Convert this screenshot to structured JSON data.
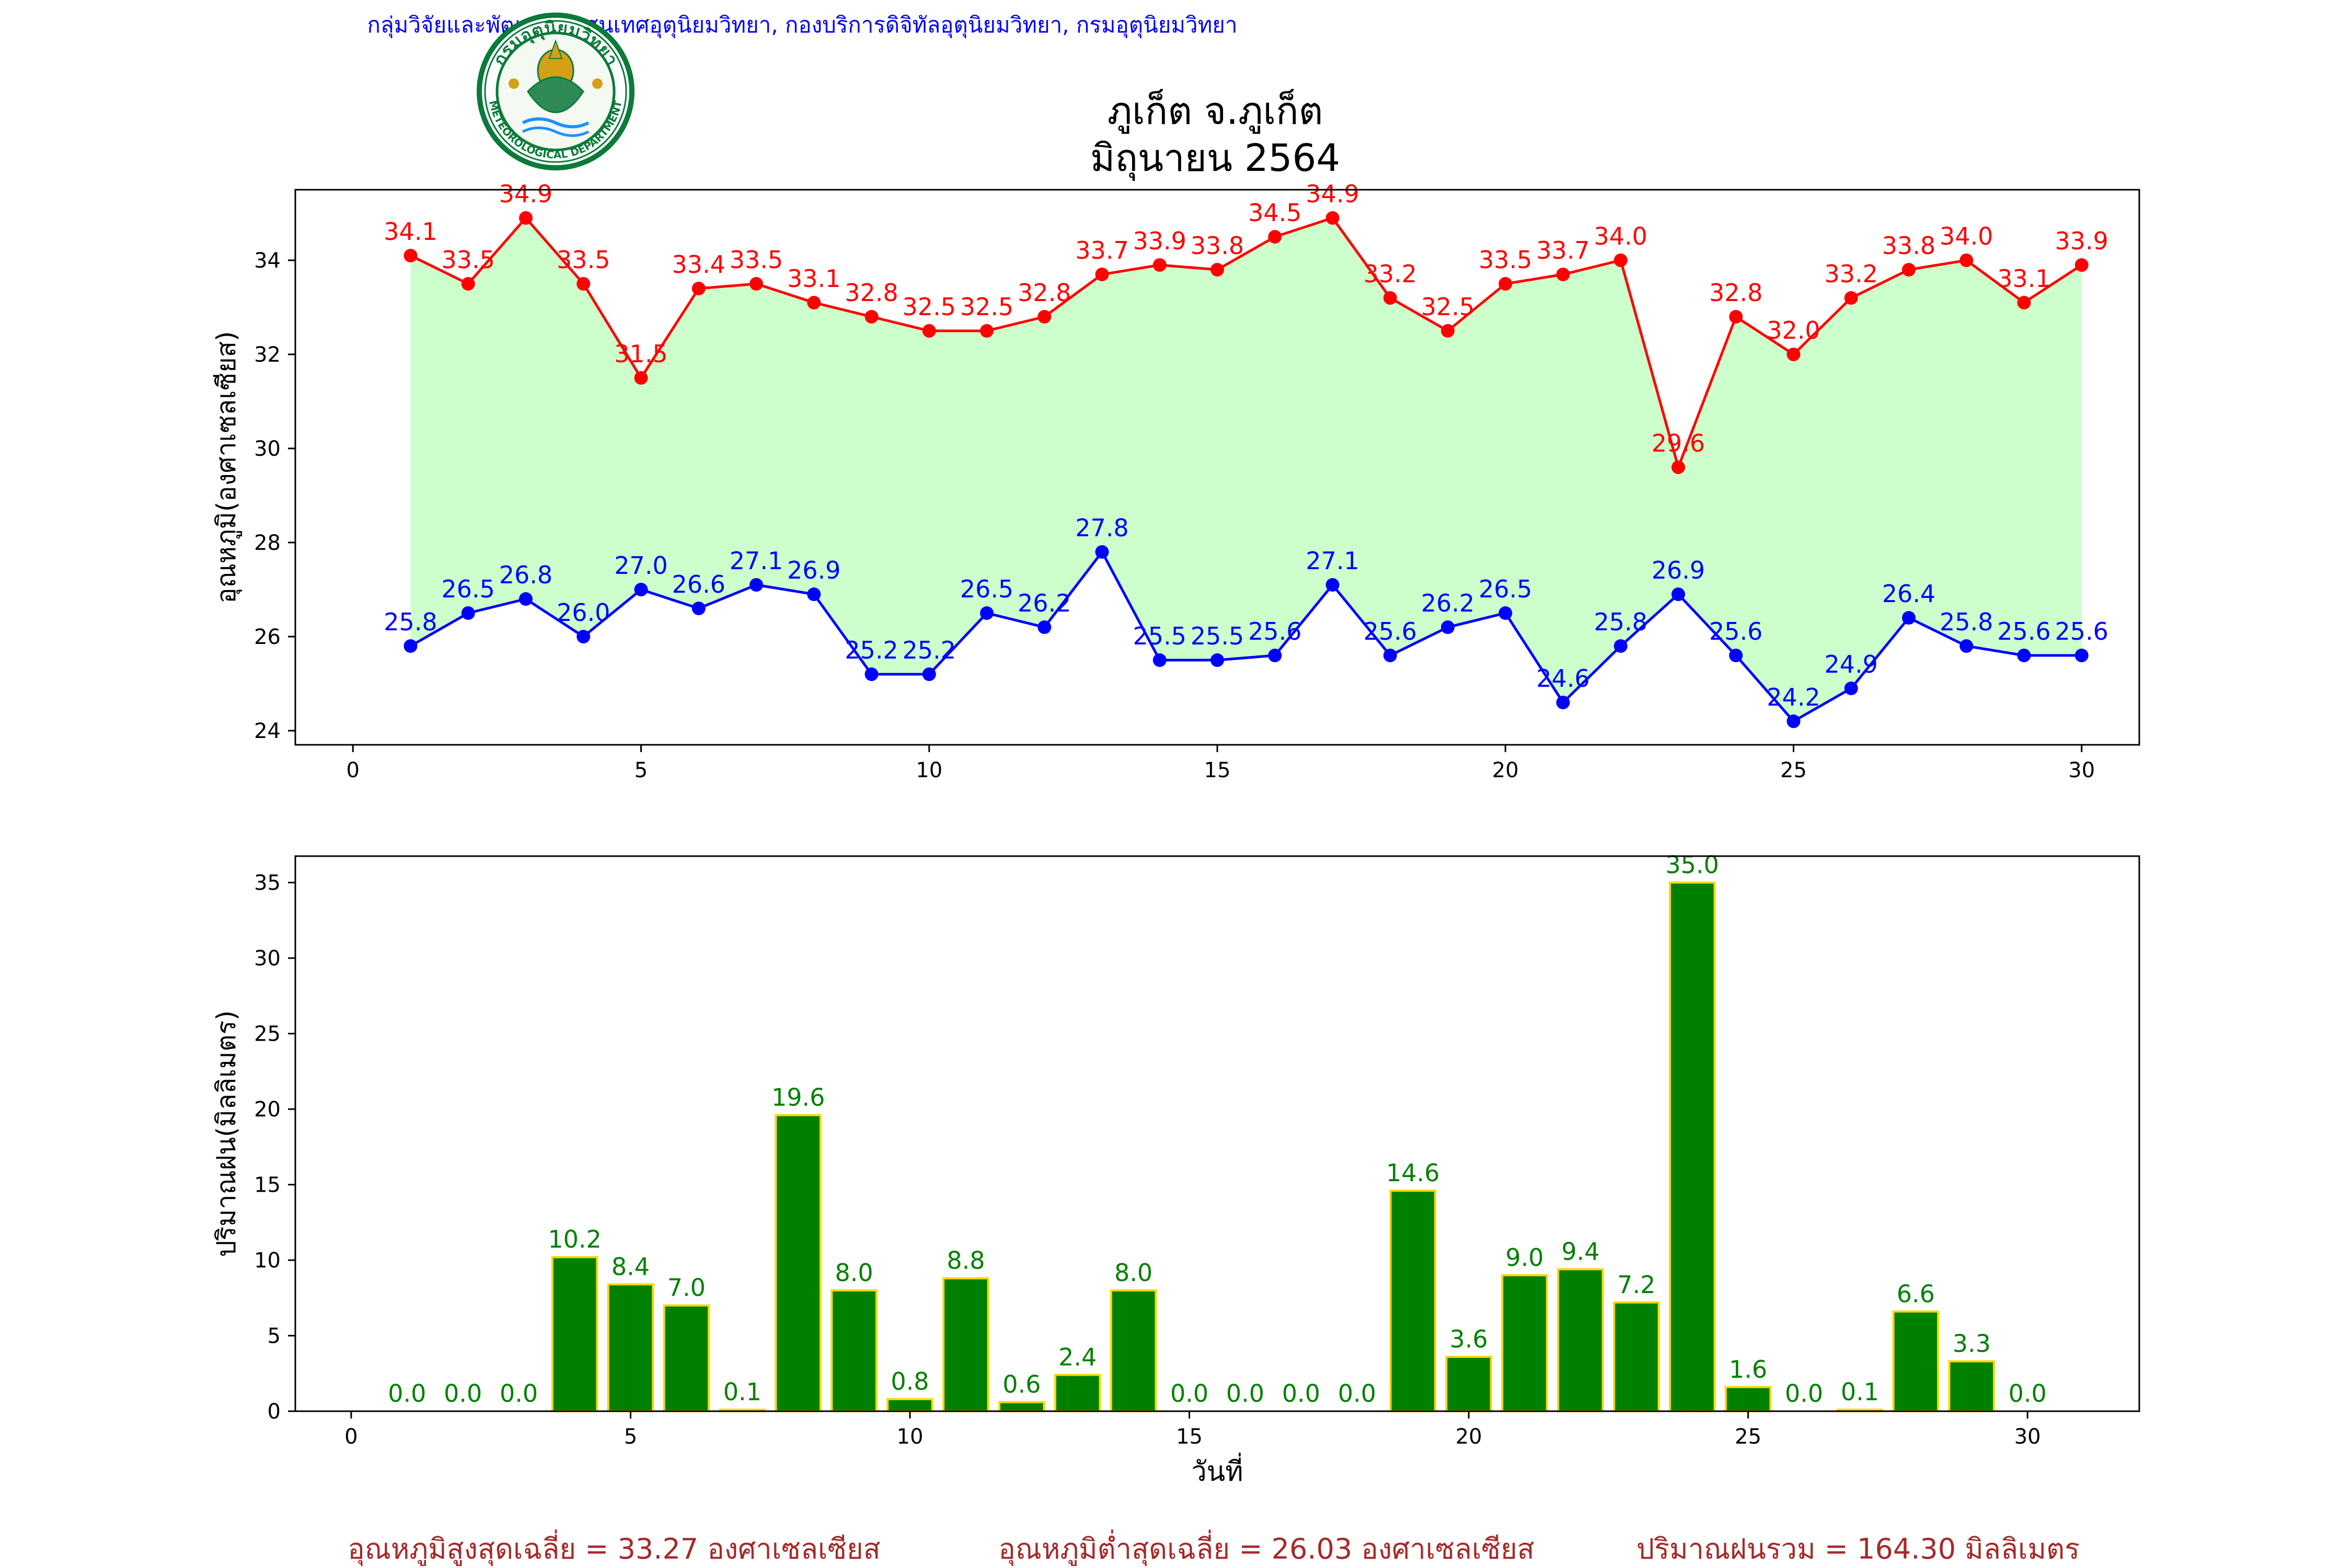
{
  "header": {
    "organization": "กลุ่มวิจัยและพัฒนาสารสนเทศอุตุนิยมวิทยา, กองบริการดิจิทัลอุตุนิยมวิทยา, กรมอุตุนิยมวิทยา",
    "logo_top_text": "กรมอุตุนิยมวิทยา",
    "logo_bottom_text": "METEOROLOGICAL DEPARTMENT",
    "title_line1": "ภูเก็ต จ.ภูเก็ต",
    "title_line2": "มิถุนายน 2564"
  },
  "colors": {
    "max_line": "#ff0000",
    "min_line": "#0000ff",
    "fill": "#ccffcc",
    "bar": "#008000",
    "bar_edge": "#ffd700",
    "bar_label": "#008000",
    "header_text": "#0000ff",
    "summary_text": "#a52a2a"
  },
  "chart_data": [
    {
      "type": "line",
      "ylabel": "อุณหภูมิ(องศาเซลเซียส)",
      "xlabel": "",
      "xlim": [
        -1,
        31
      ],
      "ylim": [
        23.7,
        35.5
      ],
      "xticks": [
        0,
        5,
        10,
        15,
        20,
        25,
        30
      ],
      "yticks": [
        24,
        26,
        28,
        30,
        32,
        34
      ],
      "fill_between_series": true,
      "x": [
        1,
        2,
        3,
        4,
        5,
        6,
        7,
        8,
        9,
        10,
        11,
        12,
        13,
        14,
        15,
        16,
        17,
        18,
        19,
        20,
        21,
        22,
        23,
        24,
        25,
        26,
        27,
        28,
        29,
        30
      ],
      "series": [
        {
          "key": "max",
          "values": [
            34.1,
            33.5,
            34.9,
            33.5,
            31.5,
            33.4,
            33.5,
            33.1,
            32.8,
            32.5,
            32.5,
            32.8,
            33.7,
            33.9,
            33.8,
            34.5,
            34.9,
            33.2,
            32.5,
            33.5,
            33.7,
            34.0,
            29.6,
            32.8,
            32.0,
            33.2,
            33.8,
            34.0,
            33.1,
            33.9
          ]
        },
        {
          "key": "min",
          "values": [
            25.8,
            26.5,
            26.8,
            26.0,
            27.0,
            26.6,
            27.1,
            26.9,
            25.2,
            25.2,
            26.5,
            26.2,
            27.8,
            25.5,
            25.5,
            25.6,
            27.1,
            25.6,
            26.2,
            26.5,
            24.6,
            25.8,
            26.9,
            25.6,
            24.2,
            24.9,
            26.4,
            25.8,
            25.6,
            25.6
          ]
        }
      ]
    },
    {
      "type": "bar",
      "ylabel": "ปริมาณฝน(มิลลิเมตร)",
      "xlabel": "วันที่",
      "xlim": [
        -1,
        32
      ],
      "ylim": [
        0,
        36.75
      ],
      "xticks": [
        0,
        5,
        10,
        15,
        20,
        25,
        30
      ],
      "yticks": [
        0,
        5,
        10,
        15,
        20,
        25,
        30,
        35
      ],
      "x": [
        1,
        2,
        3,
        4,
        5,
        6,
        7,
        8,
        9,
        10,
        11,
        12,
        13,
        14,
        15,
        16,
        17,
        18,
        19,
        20,
        21,
        22,
        23,
        24,
        25,
        26,
        27,
        28,
        29,
        30
      ],
      "values": [
        0.0,
        0.0,
        0.0,
        10.2,
        8.4,
        7.0,
        0.1,
        19.6,
        8.0,
        0.8,
        8.8,
        0.6,
        2.4,
        8.0,
        0.0,
        0.0,
        0.0,
        0.0,
        14.6,
        3.6,
        9.0,
        9.4,
        7.2,
        35.0,
        1.6,
        0.0,
        0.1,
        6.6,
        3.3,
        0.0
      ]
    }
  ],
  "summary": {
    "avg_max": "อุณหภูมิสูงสุดเฉลี่ย = 33.27 องศาเซลเซียส",
    "avg_min": "อุณหภูมิต่ำสุดเฉลี่ย = 26.03 องศาเซลเซียส",
    "total_rain": "ปริมาณฝนรวม = 164.30 มิลลิเมตร"
  }
}
